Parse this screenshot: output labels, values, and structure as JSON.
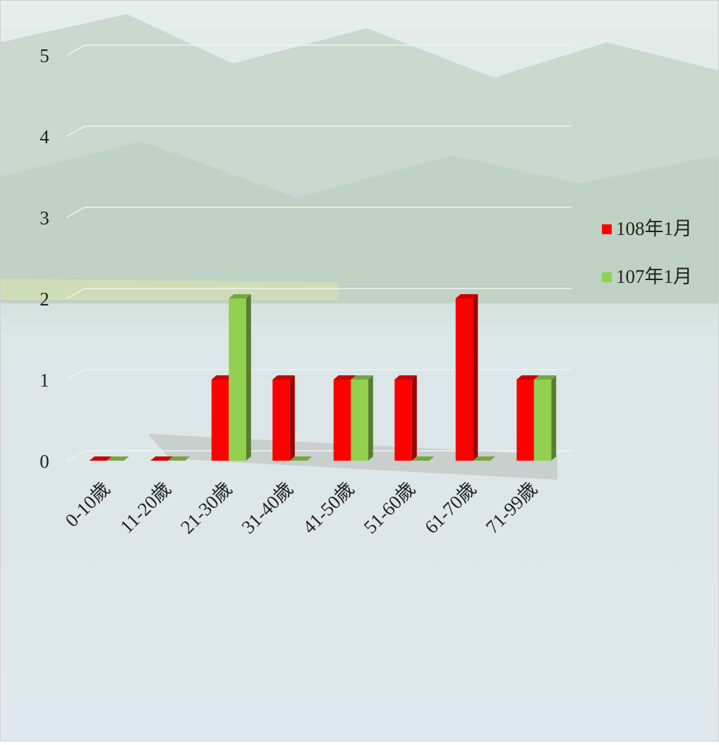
{
  "chart_data": {
    "type": "bar",
    "bar_style": "3d-clustered",
    "categories": [
      "0-10歲",
      "11-20歲",
      "21-30歲",
      "31-40歲",
      "41-50歲",
      "51-60歲",
      "61-70歲",
      "71-99歲"
    ],
    "series": [
      {
        "name": "108年1月",
        "color": "#ff0000",
        "values": [
          0,
          0,
          1,
          1,
          1,
          1,
          2,
          1
        ]
      },
      {
        "name": "107年1月",
        "color": "#92d050",
        "values": [
          0,
          0,
          2,
          0,
          1,
          0,
          0,
          1
        ]
      }
    ],
    "ylim": [
      0,
      5
    ],
    "yticks": [
      0,
      1,
      2,
      3,
      4,
      5
    ],
    "grid": true,
    "legend": "right"
  }
}
